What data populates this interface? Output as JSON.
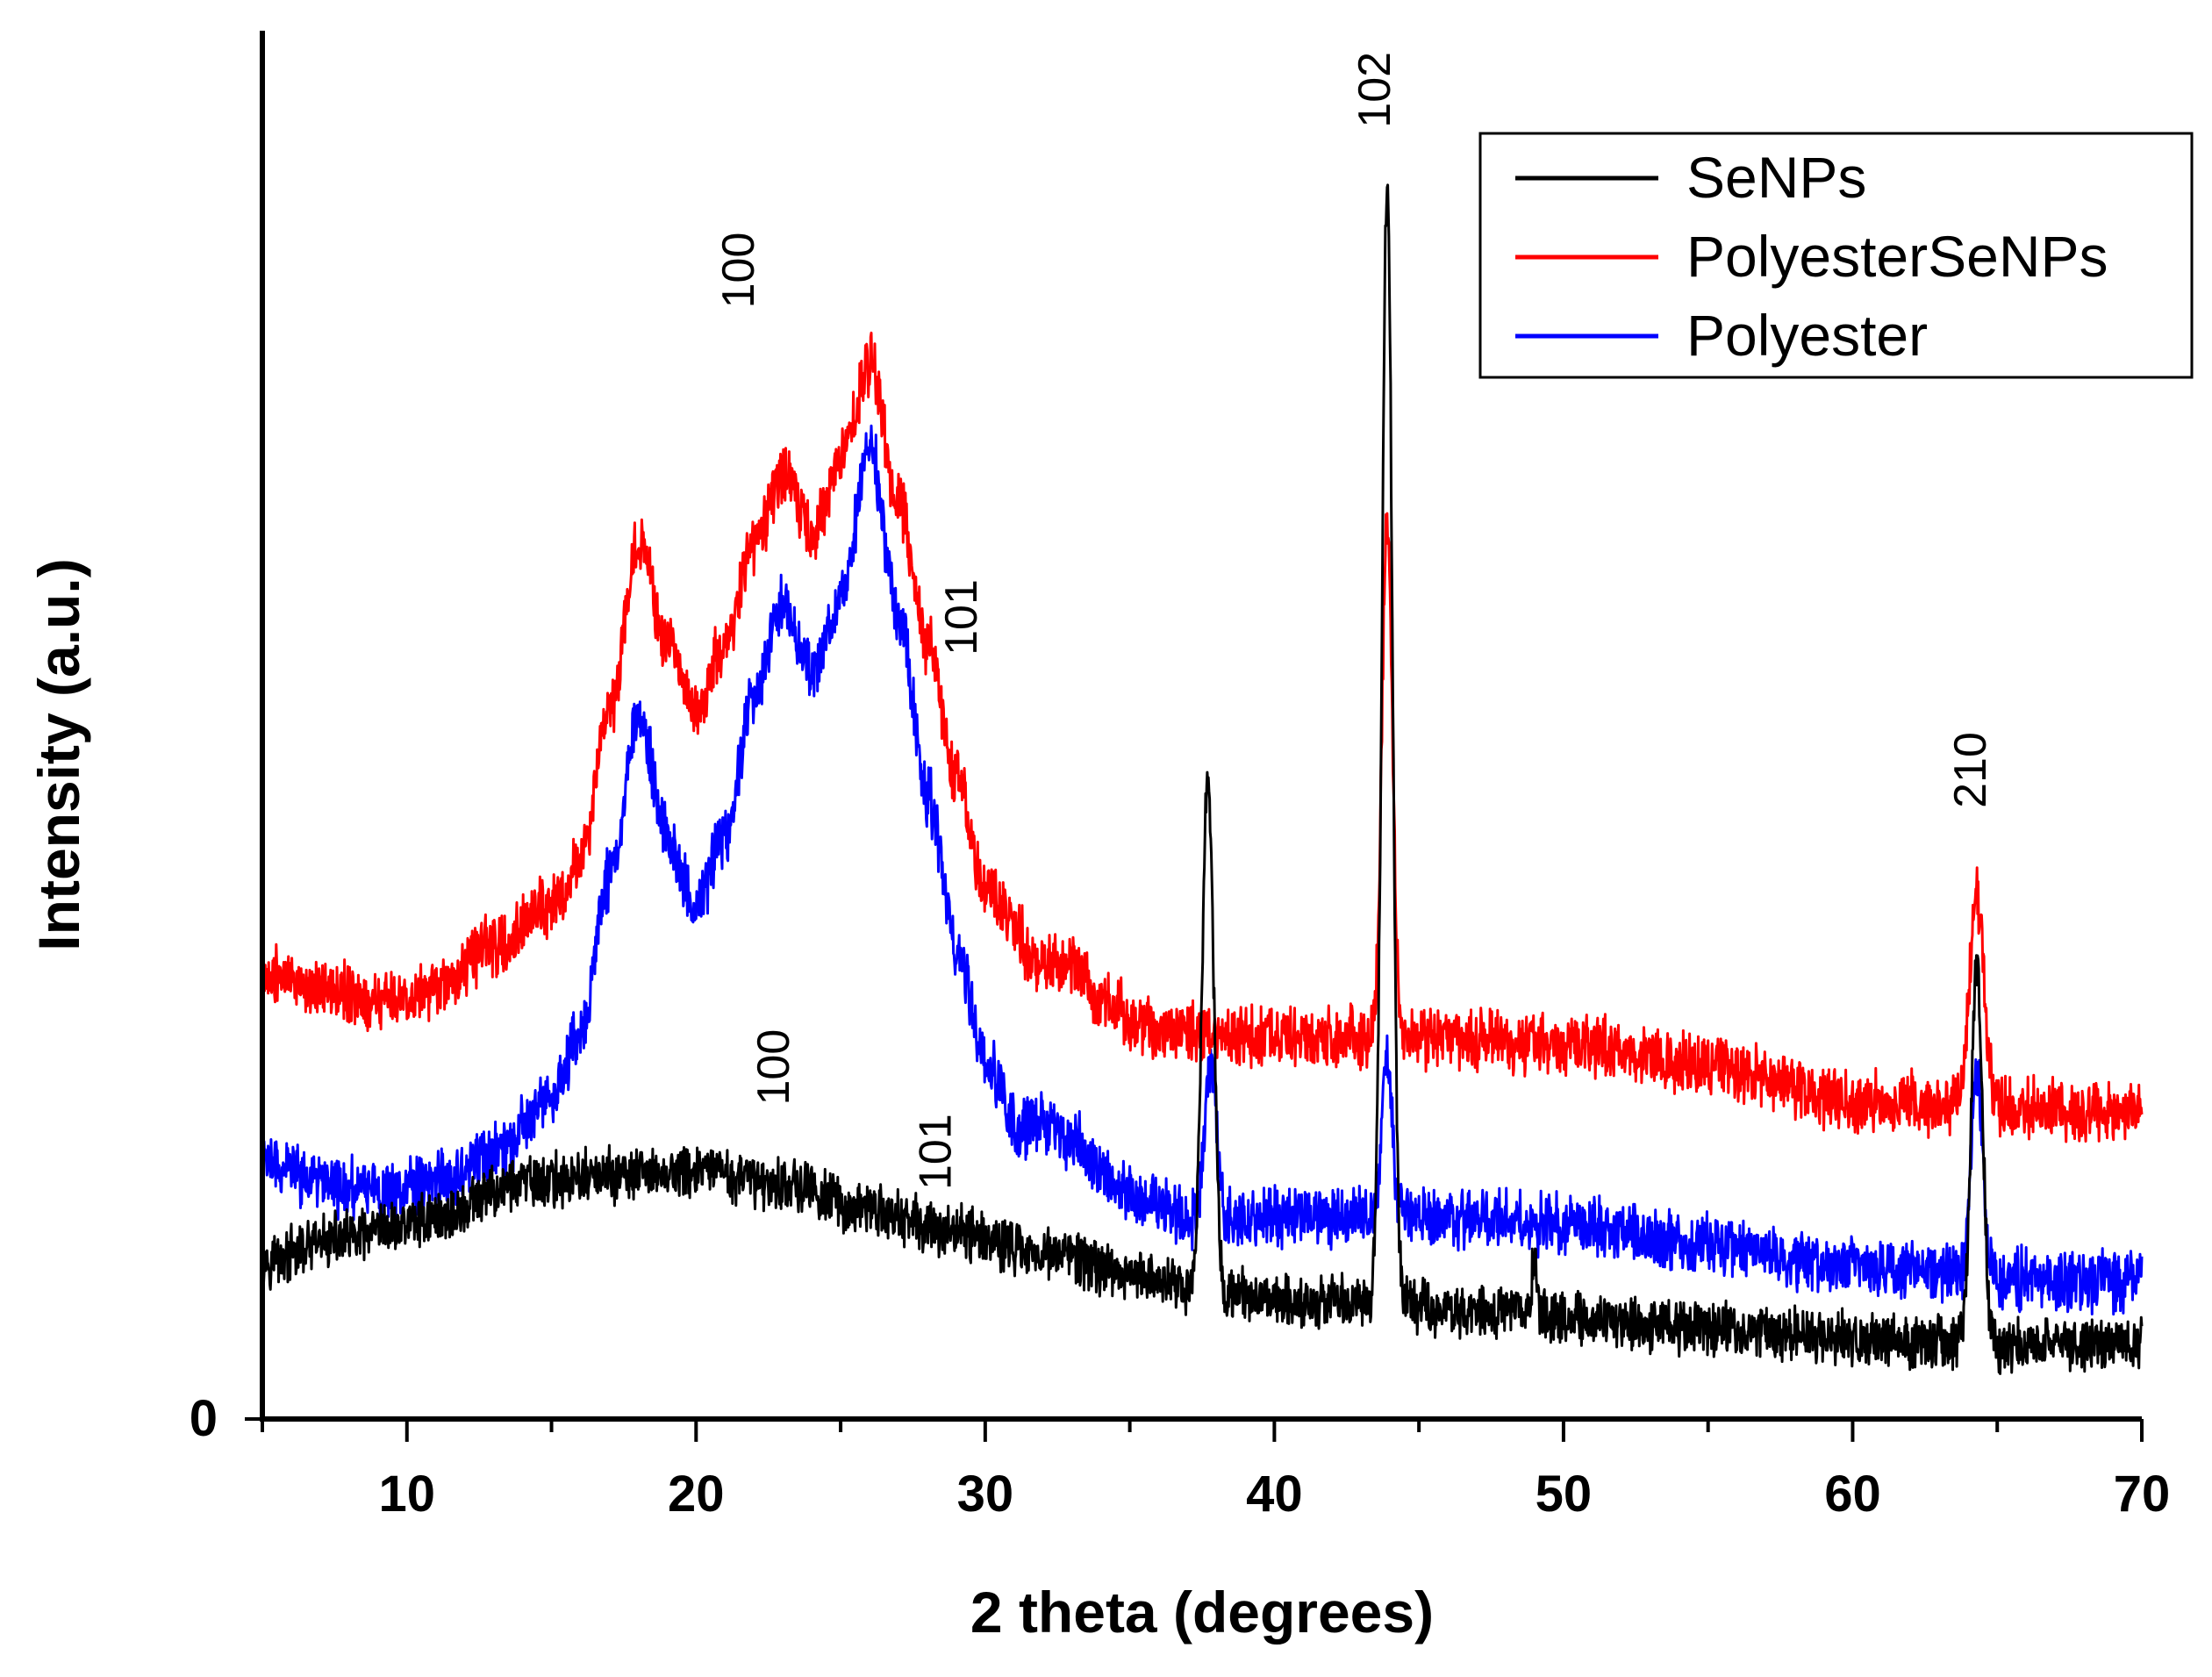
{
  "chart_data": {
    "type": "line",
    "title": "",
    "xlabel": "2 theta (degrees)",
    "ylabel": "Intensity (a.u.)",
    "xlim": [
      5,
      70
    ],
    "ylim": [
      0,
      100
    ],
    "x_ticks": [
      10,
      20,
      30,
      40,
      50,
      60,
      70
    ],
    "x_tick_labels": [
      "10",
      "20",
      "30",
      "40",
      "50",
      "60",
      "70"
    ],
    "y_tick_labels": [
      "0"
    ],
    "grid": false,
    "legend_position": "top-right",
    "legend": [
      "SeNPs",
      "PolyesterSeNPs",
      "Polyester"
    ],
    "series": [
      {
        "name": "SeNPs",
        "color": "#000000",
        "base": [
          [
            5,
            11.5
          ],
          [
            8,
            13
          ],
          [
            11,
            14.5
          ],
          [
            14,
            17
          ],
          [
            17,
            17.5
          ],
          [
            20,
            17.8
          ],
          [
            23,
            17
          ],
          [
            26,
            15
          ],
          [
            29,
            13.5
          ],
          [
            32,
            12
          ],
          [
            35,
            10.5
          ],
          [
            38,
            9
          ],
          [
            41,
            8.5
          ],
          [
            44,
            8.3
          ],
          [
            47,
            7.8
          ],
          [
            50,
            7.3
          ],
          [
            55,
            6.5
          ],
          [
            60,
            5.8
          ],
          [
            65,
            5.3
          ],
          [
            70,
            5.3
          ]
        ],
        "noise": 1.5,
        "peaks": [
          [
            37.7,
            37.5,
            0.2
          ],
          [
            43.9,
            81,
            0.18
          ],
          [
            49.0,
            4,
            0.1
          ],
          [
            64.3,
            27,
            0.2
          ]
        ]
      },
      {
        "name": "PolyesterSeNPs",
        "color": "#ff0000",
        "base": [
          [
            5,
            32
          ],
          [
            7,
            31
          ],
          [
            9,
            30
          ],
          [
            11,
            31
          ],
          [
            13,
            34
          ],
          [
            15,
            37
          ],
          [
            16,
            40
          ],
          [
            17,
            51
          ],
          [
            18,
            63
          ],
          [
            19,
            56
          ],
          [
            20,
            51
          ],
          [
            21,
            56
          ],
          [
            22,
            63
          ],
          [
            23,
            68
          ],
          [
            24,
            64
          ],
          [
            25,
            69
          ],
          [
            26,
            76
          ],
          [
            27,
            66
          ],
          [
            28,
            56
          ],
          [
            29,
            46
          ],
          [
            30,
            38
          ],
          [
            32,
            33
          ],
          [
            33,
            32.5
          ],
          [
            34,
            30
          ],
          [
            36,
            28
          ],
          [
            40,
            27.5
          ],
          [
            45,
            27.5
          ],
          [
            50,
            27
          ],
          [
            55,
            25.5
          ],
          [
            60,
            23
          ],
          [
            65,
            22.5
          ],
          [
            70,
            22
          ]
        ],
        "noise": 1.7,
        "peaks": [
          [
            43.9,
            37,
            0.18
          ],
          [
            64.3,
            15,
            0.25
          ]
        ]
      },
      {
        "name": "Polyester",
        "color": "#0000ff",
        "base": [
          [
            5,
            18.5
          ],
          [
            7,
            17
          ],
          [
            9,
            16.5
          ],
          [
            11,
            17
          ],
          [
            13,
            19
          ],
          [
            15,
            23
          ],
          [
            16,
            28
          ],
          [
            17,
            39
          ],
          [
            18,
            51
          ],
          [
            19,
            42
          ],
          [
            20,
            37
          ],
          [
            21,
            42
          ],
          [
            22,
            52
          ],
          [
            23,
            59
          ],
          [
            24,
            54
          ],
          [
            25,
            59
          ],
          [
            26,
            70
          ],
          [
            27,
            58
          ],
          [
            28,
            45
          ],
          [
            29,
            34
          ],
          [
            30,
            26
          ],
          [
            31,
            21
          ],
          [
            32,
            21.5
          ],
          [
            33,
            20
          ],
          [
            35,
            16
          ],
          [
            37,
            14.5
          ],
          [
            40,
            14.5
          ],
          [
            45,
            14.5
          ],
          [
            50,
            14
          ],
          [
            55,
            12.5
          ],
          [
            60,
            11
          ],
          [
            65,
            10.2
          ],
          [
            70,
            10
          ]
        ],
        "noise": 1.7,
        "peaks": [
          [
            37.8,
            11,
            0.2
          ],
          [
            43.9,
            11,
            0.18
          ],
          [
            64.3,
            15,
            0.2
          ]
        ]
      }
    ],
    "annotations": [
      {
        "text": "100",
        "x": 22,
        "y": 80
      },
      {
        "text": "101",
        "x": 29.7,
        "y": 55
      },
      {
        "text": "102",
        "x": 44.0,
        "y": 93
      },
      {
        "text": "210",
        "x": 64.6,
        "y": 44
      },
      {
        "text": "100",
        "x": 23.2,
        "y": 22.6
      },
      {
        "text": "101",
        "x": 28.8,
        "y": 16.5
      }
    ]
  }
}
